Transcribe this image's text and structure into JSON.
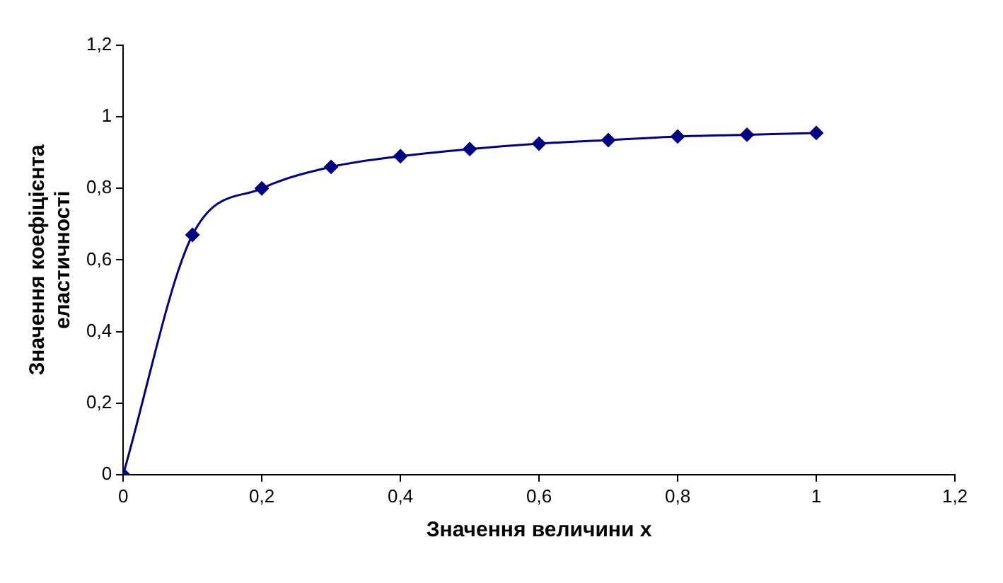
{
  "chart_data": {
    "type": "line",
    "xlabel": "Значення величини x",
    "ylabel": "Значення коефіцієнта еластичності",
    "x": [
      0,
      0.1,
      0.2,
      0.3,
      0.4,
      0.5,
      0.6,
      0.7,
      0.8,
      0.9,
      1
    ],
    "series": [
      {
        "color": "#000080",
        "values": [
          0,
          0.67,
          0.8,
          0.86,
          0.89,
          0.91,
          0.925,
          0.935,
          0.945,
          0.95,
          0.955
        ]
      }
    ],
    "xlim": [
      0,
      1.2
    ],
    "ylim": [
      0,
      1.2
    ],
    "xticks": [
      0,
      {
        "value": 0.2,
        "label": "0,2"
      },
      {
        "value": 0.4,
        "label": "0,4"
      },
      {
        "value": 0.6,
        "label": "0,6"
      },
      {
        "value": 0.8,
        "label": "0,8"
      },
      1,
      {
        "value": 1.2,
        "label": "1,2"
      }
    ],
    "yticks": [
      0,
      {
        "value": 0.2,
        "label": "0,2"
      },
      {
        "value": 0.4,
        "label": "0,4"
      },
      {
        "value": 0.6,
        "label": "0,6"
      },
      {
        "value": 0.8,
        "label": "0,8"
      },
      1,
      {
        "value": 1.2,
        "label": "1,2"
      }
    ],
    "grid": false,
    "legend": false,
    "marker": "diamond",
    "line_style": "solid"
  }
}
